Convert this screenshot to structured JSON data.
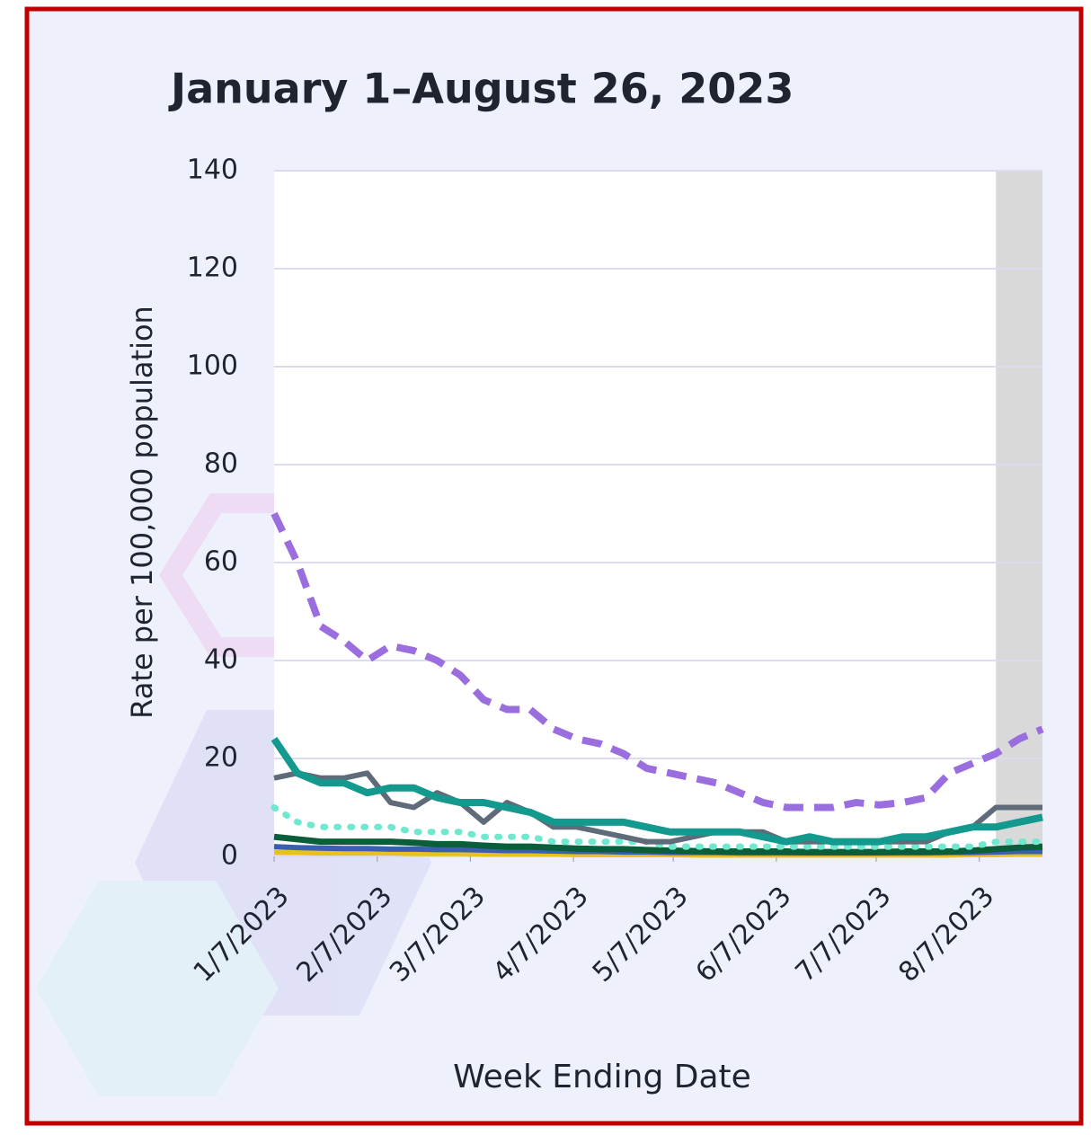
{
  "chart_data": {
    "type": "line",
    "title": "January 1–August 26, 2023",
    "y_label": "Rate per 100,000 population",
    "x_label": "Week Ending Date",
    "x": [
      "2023-01-07",
      "2023-01-14",
      "2023-01-21",
      "2023-01-28",
      "2023-02-04",
      "2023-02-11",
      "2023-02-18",
      "2023-02-25",
      "2023-03-04",
      "2023-03-11",
      "2023-03-18",
      "2023-03-25",
      "2023-04-01",
      "2023-04-08",
      "2023-04-15",
      "2023-04-22",
      "2023-04-29",
      "2023-05-06",
      "2023-05-13",
      "2023-05-20",
      "2023-05-27",
      "2023-06-03",
      "2023-06-10",
      "2023-06-17",
      "2023-06-24",
      "2023-07-01",
      "2023-07-08",
      "2023-07-15",
      "2023-07-22",
      "2023-07-29",
      "2023-08-05",
      "2023-08-12",
      "2023-08-19",
      "2023-08-26"
    ],
    "xlim": [
      "2023-01-07",
      "2023-08-26"
    ],
    "xticks": [
      {
        "value": "2023-01-07",
        "label": "1/7/2023"
      },
      {
        "value": "2023-02-07",
        "label": "2/7/2023"
      },
      {
        "value": "2023-03-07",
        "label": "3/7/2023"
      },
      {
        "value": "2023-04-07",
        "label": "4/7/2023"
      },
      {
        "value": "2023-05-07",
        "label": "5/7/2023"
      },
      {
        "value": "2023-06-07",
        "label": "6/7/2023"
      },
      {
        "value": "2023-07-07",
        "label": "7/7/2023"
      },
      {
        "value": "2023-08-07",
        "label": "8/7/2023"
      }
    ],
    "ylim": [
      0,
      140
    ],
    "yticks": [
      0,
      20,
      40,
      60,
      80,
      100,
      120,
      140
    ],
    "grid": true,
    "shaded_xlim": [
      "2023-08-12",
      "2023-08-26"
    ],
    "series": [
      {
        "color": "#e8c11b",
        "dash": "solid",
        "width": 6,
        "values": [
          0.8,
          0.8,
          0.7,
          0.7,
          0.7,
          0.7,
          0.6,
          0.6,
          0.6,
          0.5,
          0.5,
          0.5,
          0.5,
          0.4,
          0.4,
          0.4,
          0.4,
          0.4,
          0.3,
          0.3,
          0.3,
          0.3,
          0.3,
          0.3,
          0.3,
          0.3,
          0.3,
          0.3,
          0.3,
          0.3,
          0.4,
          0.4,
          0.5,
          0.5
        ]
      },
      {
        "color": "#3a5fb0",
        "dash": "solid",
        "width": 6,
        "values": [
          2,
          1.8,
          1.7,
          1.6,
          1.6,
          1.5,
          1.5,
          1.4,
          1.4,
          1.3,
          1.2,
          1.2,
          1.1,
          1,
          1,
          0.9,
          0.9,
          0.8,
          0.8,
          0.8,
          0.7,
          0.7,
          0.7,
          0.7,
          0.7,
          0.7,
          0.7,
          0.7,
          0.7,
          0.8,
          0.8,
          0.9,
          1,
          1
        ]
      },
      {
        "color": "#0b5e3a",
        "dash": "solid",
        "width": 7,
        "values": [
          4,
          3.5,
          3,
          3,
          3,
          3,
          2.8,
          2.5,
          2.5,
          2.2,
          2,
          2,
          1.8,
          1.6,
          1.5,
          1.5,
          1.3,
          1.2,
          1.1,
          1,
          1,
          1,
          1,
          0.9,
          0.9,
          0.9,
          0.9,
          1,
          1,
          1,
          1.2,
          1.5,
          1.8,
          2
        ]
      },
      {
        "color": "#6fe8d0",
        "dash": "dotted",
        "width": 7,
        "values": [
          10,
          7,
          6,
          6,
          6,
          6,
          5,
          5,
          5,
          4,
          4,
          4,
          3,
          3,
          3,
          3,
          3,
          2,
          2,
          2,
          2,
          2,
          2,
          2,
          2,
          2,
          2,
          2,
          2,
          2,
          2,
          3,
          3,
          3
        ]
      },
      {
        "color": "#5f6b78",
        "dash": "solid",
        "width": 6,
        "values": [
          16,
          17,
          16,
          16,
          17,
          11,
          10,
          13,
          11,
          7,
          11,
          9,
          6,
          6,
          5,
          4,
          3,
          3,
          4,
          5,
          5,
          5,
          3,
          3,
          3,
          3,
          3,
          3,
          3,
          5,
          6,
          10,
          10,
          10
        ]
      },
      {
        "color": "#13998e",
        "dash": "solid",
        "width": 8,
        "values": [
          24,
          17,
          15,
          15,
          13,
          14,
          14,
          12,
          11,
          11,
          10,
          9,
          7,
          7,
          7,
          7,
          6,
          5,
          5,
          5,
          5,
          4,
          3,
          4,
          3,
          3,
          3,
          4,
          4,
          5,
          6,
          6,
          7,
          8
        ]
      },
      {
        "color": "#9b6ee0",
        "dash": "dashed",
        "width": 8,
        "values": [
          70,
          60,
          47,
          44,
          40,
          43,
          42,
          40,
          37,
          32,
          30,
          30,
          26,
          24,
          23,
          21,
          18,
          17,
          16,
          15,
          13,
          11,
          10,
          10,
          10,
          11,
          10.5,
          11,
          12,
          17,
          19,
          21,
          24,
          26
        ]
      }
    ]
  }
}
